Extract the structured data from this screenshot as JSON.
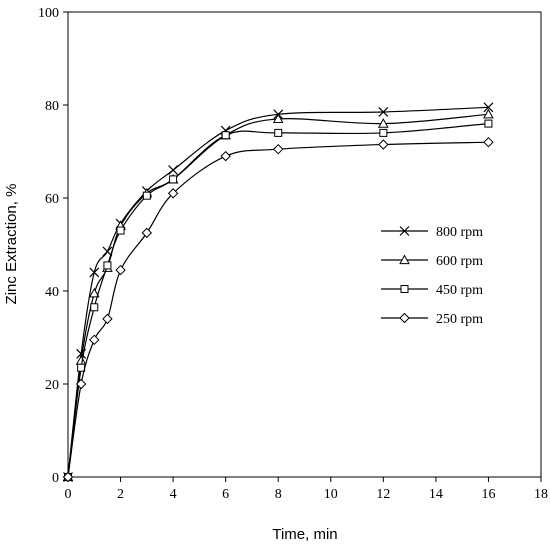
{
  "chart_data": {
    "type": "line",
    "title": "",
    "xlabel": "Time, min",
    "ylabel": "Zinc Extraction, %",
    "xlim": [
      0,
      18
    ],
    "ylim": [
      0,
      100
    ],
    "xticks": [
      0,
      2,
      4,
      6,
      8,
      10,
      12,
      14,
      16,
      18
    ],
    "yticks": [
      0,
      20,
      40,
      60,
      80,
      100
    ],
    "grid": false,
    "legend_position": "right",
    "series": [
      {
        "name": "800 rpm",
        "marker": "x",
        "x": [
          0,
          0.5,
          1,
          1.5,
          2,
          3,
          4,
          6,
          8,
          12,
          16
        ],
        "y": [
          0,
          26.5,
          44,
          48.5,
          54.5,
          61.5,
          66,
          74.5,
          78,
          78.5,
          79.5
        ]
      },
      {
        "name": "600 rpm",
        "marker": "triangle",
        "x": [
          0,
          0.5,
          1,
          1.5,
          2,
          3,
          4,
          6,
          8,
          12,
          16
        ],
        "y": [
          0,
          25,
          39.5,
          45,
          54,
          61,
          64,
          73.5,
          77,
          76,
          78
        ]
      },
      {
        "name": "450 rpm",
        "marker": "square",
        "x": [
          0,
          0.5,
          1,
          1.5,
          2,
          3,
          4,
          6,
          8,
          12,
          16
        ],
        "y": [
          0,
          23.5,
          36.5,
          45.5,
          53,
          60.5,
          64,
          73.5,
          74,
          74,
          76
        ]
      },
      {
        "name": "250 rpm",
        "marker": "diamond",
        "x": [
          0,
          0.5,
          1,
          1.5,
          2,
          3,
          4,
          6,
          8,
          12,
          16
        ],
        "y": [
          0,
          20,
          29.5,
          34,
          44.5,
          52.5,
          61,
          69,
          70.5,
          71.5,
          72
        ]
      }
    ]
  }
}
